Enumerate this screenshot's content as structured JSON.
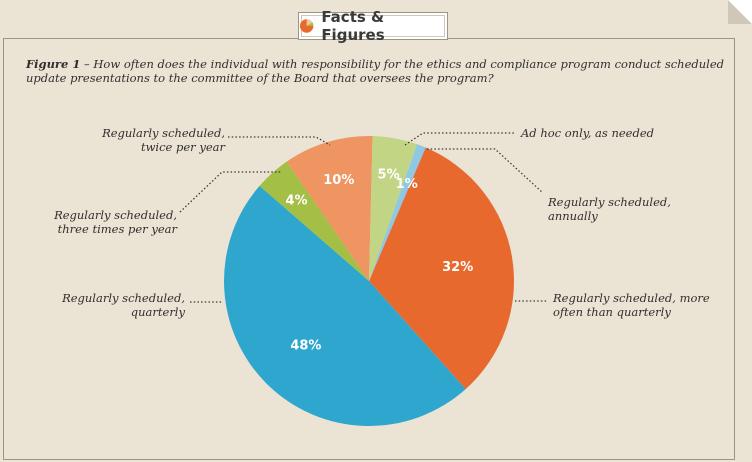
{
  "header": {
    "title": "Facts & Figures"
  },
  "figure": {
    "number": "Figure 1",
    "separator": " – ",
    "question": "How often does the individual with responsibility for the ethics and compliance program conduct scheduled update presentations to the committee of the Board that oversees the program?"
  },
  "chart_data": {
    "type": "pie",
    "slices": [
      {
        "label": "Regularly scheduled, more often than quarterly",
        "value": 32,
        "pct_label": "32%",
        "color": "#e8692e"
      },
      {
        "label": "Regularly scheduled, quarterly",
        "value": 48,
        "pct_label": "48%",
        "color": "#2ea6ce"
      },
      {
        "label": "Regularly scheduled, three times per year",
        "value": 4,
        "pct_label": "4%",
        "color": "#a3bf45"
      },
      {
        "label": "Regularly scheduled, twice per year",
        "value": 10,
        "pct_label": "10%",
        "color": "#ee9562"
      },
      {
        "label": "Ad hoc only, as needed",
        "value": 5,
        "pct_label": "5%",
        "color": "#c2d585"
      },
      {
        "label": "Regularly scheduled, annually",
        "value": 1,
        "pct_label": "1%",
        "color": "#8ec8e2"
      }
    ],
    "labels_display": {
      "more_often": [
        "Regularly scheduled, more",
        "often than quarterly"
      ],
      "quarterly": [
        "Regularly scheduled,",
        "quarterly"
      ],
      "three_times": [
        "Regularly scheduled,",
        "three times per year"
      ],
      "twice": [
        "Regularly scheduled,",
        "twice per year"
      ],
      "ad_hoc": [
        "Ad hoc only, as needed"
      ],
      "annually": [
        "Regularly scheduled,",
        "annually"
      ]
    }
  }
}
